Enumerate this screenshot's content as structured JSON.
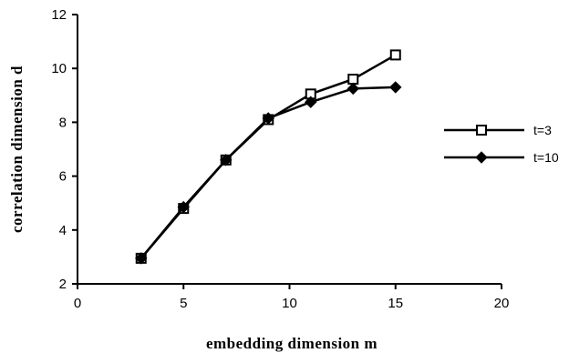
{
  "chart_data": {
    "type": "line",
    "xlabel": "embedding dimension m",
    "ylabel": "correlation dimension d",
    "xlim": [
      0,
      20
    ],
    "ylim": [
      2,
      12
    ],
    "xticks": [
      0,
      5,
      10,
      15,
      20
    ],
    "yticks": [
      2,
      4,
      6,
      8,
      10,
      12
    ],
    "grid": false,
    "legend_position": "right",
    "series": [
      {
        "name": "t=3",
        "marker": "open-square",
        "x": [
          3,
          5,
          7,
          9,
          11,
          13,
          15
        ],
        "y": [
          2.95,
          4.8,
          6.6,
          8.1,
          9.05,
          9.6,
          10.5
        ]
      },
      {
        "name": "t=10",
        "marker": "filled-diamond",
        "x": [
          3,
          5,
          7,
          9,
          11,
          13,
          15
        ],
        "y": [
          2.95,
          4.85,
          6.6,
          8.15,
          8.75,
          9.25,
          9.3
        ]
      }
    ]
  }
}
